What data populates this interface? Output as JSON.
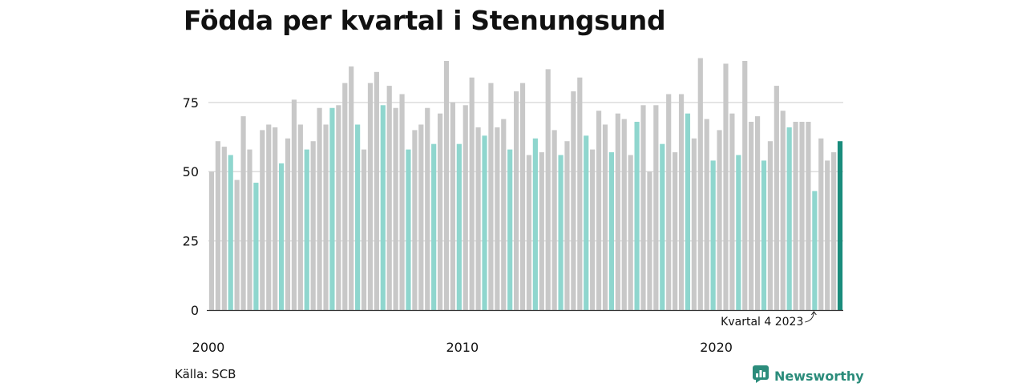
{
  "title": "Födda per kvartal i Stenungsund",
  "source": "Källa: SCB",
  "brand": {
    "name": "Newsworthy",
    "icon": "newsworthy-logo-icon"
  },
  "colors": {
    "default": "#c8c8c8",
    "q4": "#8fd6ce",
    "highlight": "#1a8c7c",
    "grid": "#dddddd",
    "axis": "#333333"
  },
  "chart_data": {
    "type": "bar",
    "title": "Födda per kvartal i Stenungsund",
    "xlabel": "",
    "ylabel": "",
    "ylim": [
      0,
      90
    ],
    "yticks": [
      0,
      25,
      50,
      75
    ],
    "grid": true,
    "x_start": {
      "year": 2000,
      "quarter": 1
    },
    "xticks": [
      "2000",
      "2010",
      "2020"
    ],
    "annotation": {
      "text": "Kvartal 4 2023",
      "year": 2023,
      "quarter": 4
    },
    "series": [
      {
        "values": [
          50,
          61,
          59,
          56,
          47,
          70,
          58,
          46,
          65,
          67,
          66,
          53,
          62,
          76,
          67,
          58,
          61,
          73,
          67,
          73,
          74,
          82,
          88,
          67,
          58,
          82,
          86,
          74,
          81,
          73,
          78,
          58,
          65,
          67,
          73,
          60,
          71,
          90,
          75,
          60,
          74,
          84,
          66,
          63,
          82,
          66,
          69,
          58,
          79,
          82,
          56,
          62,
          57,
          87,
          65,
          56,
          61,
          79,
          84,
          63,
          58,
          72,
          67,
          57,
          71,
          69,
          56,
          68,
          74,
          50,
          74,
          60,
          78,
          57,
          78,
          71,
          62,
          91,
          69,
          54,
          65,
          89,
          71,
          56,
          90,
          68,
          70,
          54,
          61,
          81,
          72,
          66,
          68,
          68,
          68,
          43,
          62,
          54,
          57,
          61
        ]
      }
    ]
  }
}
